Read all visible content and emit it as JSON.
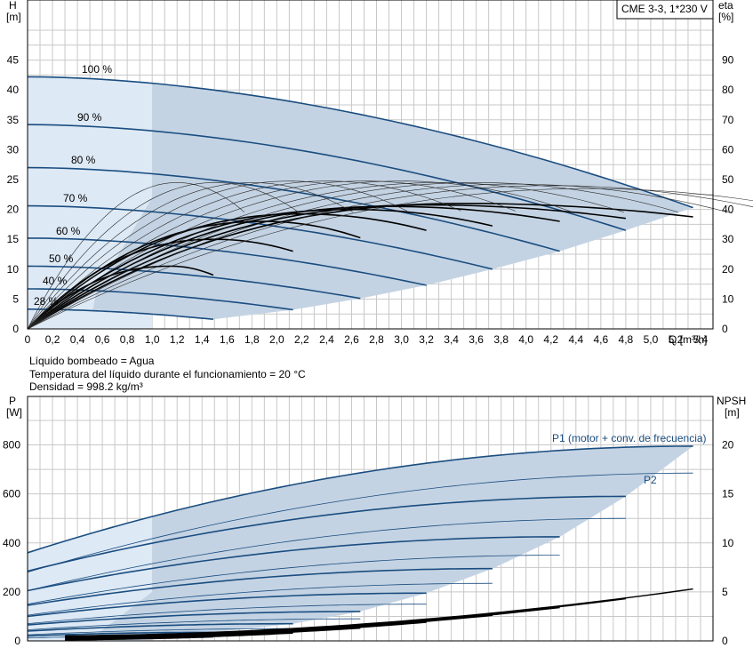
{
  "colors": {
    "envelope_fill": "#c4d3e3",
    "light_fill": "#dde9f5",
    "blue_curve": "#1a4d80",
    "black_curve": "#000000",
    "thin_curve": "#2a2a2a",
    "grid": "#c8c8c8"
  },
  "header": {
    "model": "CME 3-3, 1*230 V"
  },
  "fluid_info": {
    "line1": "Líquido bombeado = Agua",
    "line2": "Temperatura del líquido durante el funcionamiento = 20 °C",
    "line3": "Densidad = 998.2 kg/m³"
  },
  "chart_data": [
    {
      "type": "line",
      "id": "head-efficiency",
      "ylabel": "H",
      "ylabel_unit": "[m]",
      "y2label": "eta",
      "y2label_unit": "[%]",
      "xlabel": "Q [m³/h]",
      "xlim": [
        0,
        5.5
      ],
      "ylim": [
        0,
        50
      ],
      "y2lim": [
        0,
        100
      ],
      "x_ticks": [
        "0",
        "0,2",
        "0,4",
        "0,6",
        "0,8",
        "1,0",
        "1,2",
        "1,4",
        "1,6",
        "1,8",
        "2,0",
        "2,2",
        "2,4",
        "2,6",
        "2,8",
        "3,0",
        "3,2",
        "3,4",
        "3,6",
        "3,8",
        "4,0",
        "4,2",
        "4,4",
        "4,6",
        "4,8",
        "5,0",
        "5,2",
        "5,4"
      ],
      "y_ticks": [
        "0",
        "5",
        "10",
        "15",
        "20",
        "25",
        "30",
        "35",
        "40",
        "45"
      ],
      "y2_ticks": [
        "0",
        "10",
        "20",
        "30",
        "40",
        "50",
        "60",
        "70",
        "80",
        "90"
      ],
      "speed_curves": [
        {
          "name": "100 %",
          "shutoff": 42.2,
          "qmax": 5.34,
          "hend": 20.3
        },
        {
          "name": "90 %",
          "shutoff": 34.2,
          "qmax": 4.8,
          "hend": 16.5
        },
        {
          "name": "80 %",
          "shutoff": 27.0,
          "qmax": 4.27,
          "hend": 13.0
        },
        {
          "name": "70 %",
          "shutoff": 20.6,
          "qmax": 3.73,
          "hend": 10.0
        },
        {
          "name": "60 %",
          "shutoff": 15.2,
          "qmax": 3.2,
          "hend": 7.3
        },
        {
          "name": "50 %",
          "shutoff": 10.5,
          "qmax": 2.67,
          "hend": 5.1
        },
        {
          "name": "40 %",
          "shutoff": 6.7,
          "qmax": 2.13,
          "hend": 3.2
        },
        {
          "name": "28 %",
          "shutoff": 3.3,
          "qmax": 1.49,
          "hend": 1.6
        }
      ],
      "efficiency_curves": [
        {
          "qmax": 5.34,
          "peak_q": 3.5,
          "peak_eta": 42.0,
          "end_eta": 37.5
        },
        {
          "qmax": 4.8,
          "peak_q": 3.2,
          "peak_eta": 41.5,
          "end_eta": 37.0
        },
        {
          "qmax": 4.27,
          "peak_q": 2.9,
          "peak_eta": 41.0,
          "end_eta": 36.0
        },
        {
          "qmax": 3.73,
          "peak_q": 2.6,
          "peak_eta": 40.0,
          "end_eta": 34.5
        },
        {
          "qmax": 3.2,
          "peak_q": 2.2,
          "peak_eta": 38.5,
          "end_eta": 33.0
        },
        {
          "qmax": 2.67,
          "peak_q": 1.9,
          "peak_eta": 36.0,
          "end_eta": 30.5
        },
        {
          "qmax": 2.13,
          "peak_q": 1.5,
          "peak_eta": 30.0,
          "end_eta": 26.0
        },
        {
          "qmax": 1.49,
          "peak_q": 1.15,
          "peak_eta": 21.0,
          "end_eta": 18.0
        }
      ],
      "thin_efficiency_peaks": [
        {
          "peak_q": 1.2,
          "peak_eta": 49.0
        },
        {
          "peak_q": 1.5,
          "peak_eta": 49.0
        },
        {
          "peak_q": 1.8,
          "peak_eta": 49.0
        },
        {
          "peak_q": 2.1,
          "peak_eta": 49.5
        },
        {
          "peak_q": 2.4,
          "peak_eta": 49.5
        },
        {
          "peak_q": 2.7,
          "peak_eta": 49.5
        },
        {
          "peak_q": 3.0,
          "peak_eta": 49.5
        },
        {
          "peak_q": 3.3,
          "peak_eta": 49.0
        },
        {
          "peak_q": 3.6,
          "peak_eta": 49.0
        },
        {
          "peak_q": 3.9,
          "peak_eta": 48.5
        },
        {
          "peak_q": 4.2,
          "peak_eta": 48.0
        },
        {
          "peak_q": 4.5,
          "peak_eta": 47.0
        }
      ]
    },
    {
      "type": "line",
      "id": "power-npsh",
      "ylabel": "P",
      "ylabel_unit": "[W]",
      "y2label": "NPSH",
      "y2label_unit": "[m]",
      "xlim": [
        0,
        5.5
      ],
      "ylim": [
        0,
        900
      ],
      "y2lim": [
        0,
        22.5
      ],
      "y_ticks": [
        "0",
        "200",
        "400",
        "600",
        "800"
      ],
      "y2_ticks": [
        "0",
        "5",
        "10",
        "15",
        "20"
      ],
      "p1_label": "P1 (motor + conv. de frecuencia)",
      "p2_label": "P2",
      "p1_curves": [
        {
          "qmax": 5.34,
          "p0": 360,
          "pend": 795
        },
        {
          "qmax": 4.8,
          "p0": 285,
          "pend": 590
        },
        {
          "qmax": 4.27,
          "p0": 205,
          "pend": 425
        },
        {
          "qmax": 3.73,
          "p0": 145,
          "pend": 295
        },
        {
          "qmax": 3.2,
          "p0": 100,
          "pend": 195
        },
        {
          "qmax": 2.67,
          "p0": 65,
          "pend": 120
        },
        {
          "qmax": 2.13,
          "p0": 40,
          "pend": 70
        },
        {
          "qmax": 1.49,
          "p0": 20,
          "pend": 35
        }
      ],
      "p2_curves": [
        {
          "qmax": 5.34,
          "p0": 280,
          "pend": 685
        },
        {
          "qmax": 4.8,
          "p0": 205,
          "pend": 500
        },
        {
          "qmax": 4.27,
          "p0": 150,
          "pend": 350
        },
        {
          "qmax": 3.73,
          "p0": 105,
          "pend": 235
        },
        {
          "qmax": 3.2,
          "p0": 70,
          "pend": 150
        },
        {
          "qmax": 2.67,
          "p0": 45,
          "pend": 90
        },
        {
          "qmax": 2.13,
          "p0": 25,
          "pend": 50
        },
        {
          "qmax": 1.49,
          "p0": 12,
          "pend": 22
        }
      ],
      "npsh_curves": [
        {
          "qmax": 5.34,
          "n0": 0.5,
          "nend": 5.3
        },
        {
          "qmax": 4.8,
          "n0": 0.4,
          "nend": 4.3
        },
        {
          "qmax": 4.27,
          "n0": 0.3,
          "nend": 3.4
        },
        {
          "qmax": 3.73,
          "n0": 0.3,
          "nend": 2.6
        },
        {
          "qmax": 3.2,
          "n0": 0.2,
          "nend": 1.9
        },
        {
          "qmax": 2.67,
          "n0": 0.2,
          "nend": 1.3
        },
        {
          "qmax": 2.13,
          "n0": 0.1,
          "nend": 0.8
        },
        {
          "qmax": 1.49,
          "n0": 0.1,
          "nend": 0.4
        }
      ]
    }
  ]
}
